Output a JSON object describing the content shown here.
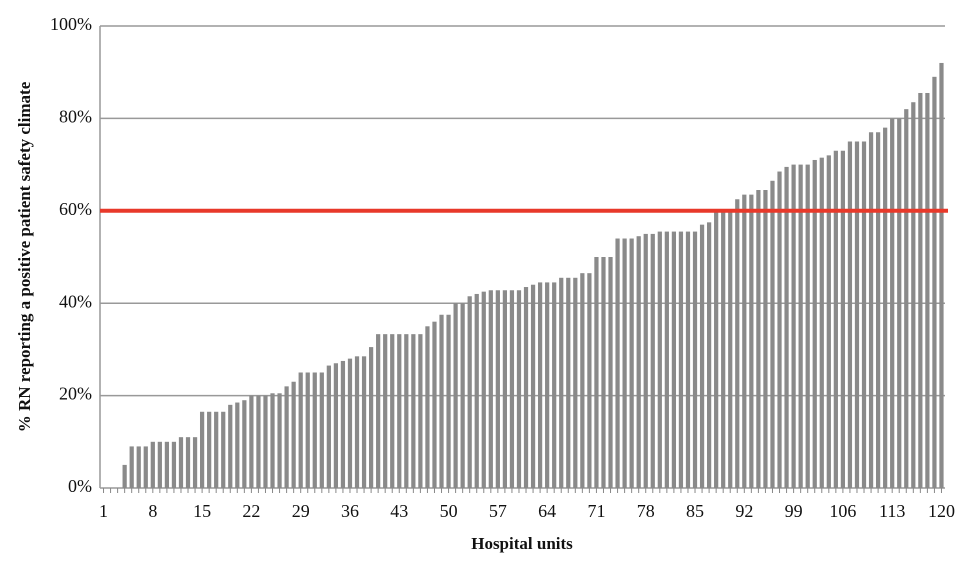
{
  "chart_data": {
    "type": "bar",
    "x_label": "Hospital units",
    "y_label": "% RN reporting a positive patient safety climate",
    "categories": [
      "1",
      null,
      null,
      null,
      null,
      null,
      null,
      "8",
      null,
      null,
      null,
      null,
      null,
      null,
      "15",
      null,
      null,
      null,
      null,
      null,
      null,
      "22",
      null,
      null,
      null,
      null,
      null,
      null,
      "29",
      null,
      null,
      null,
      null,
      null,
      null,
      "36",
      null,
      null,
      null,
      null,
      null,
      null,
      "43",
      null,
      null,
      null,
      null,
      null,
      null,
      "50",
      null,
      null,
      null,
      null,
      null,
      null,
      "57",
      null,
      null,
      null,
      null,
      null,
      null,
      "64",
      null,
      null,
      null,
      null,
      null,
      null,
      "71",
      null,
      null,
      null,
      null,
      null,
      null,
      "78",
      null,
      null,
      null,
      null,
      null,
      null,
      "85",
      null,
      null,
      null,
      null,
      null,
      null,
      "92",
      null,
      null,
      null,
      null,
      null,
      null,
      "99",
      null,
      null,
      null,
      null,
      null,
      null,
      "106",
      null,
      null,
      null,
      null,
      null,
      null,
      "113",
      null,
      null,
      null,
      null,
      null,
      null,
      "120"
    ],
    "values": [
      0,
      0,
      0,
      5,
      9,
      9,
      9,
      10,
      10,
      10,
      10,
      11,
      11,
      11,
      16.5,
      16.5,
      16.5,
      16.5,
      18,
      18.5,
      19,
      20,
      20,
      20,
      20.5,
      20.5,
      22,
      23,
      25,
      25,
      25,
      25,
      26.5,
      27,
      27.5,
      28,
      28.5,
      28.5,
      30.5,
      33.3,
      33.3,
      33.3,
      33.3,
      33.3,
      33.3,
      33.3,
      35,
      36,
      37.5,
      37.5,
      40,
      40,
      41.5,
      42,
      42.5,
      42.8,
      42.8,
      42.8,
      42.8,
      42.8,
      43.5,
      44,
      44.5,
      44.5,
      44.5,
      45.5,
      45.5,
      45.5,
      46.5,
      46.5,
      50,
      50,
      50,
      54,
      54,
      54,
      54.5,
      55,
      55,
      55.5,
      55.5,
      55.5,
      55.5,
      55.5,
      55.5,
      57,
      57.5,
      60,
      60,
      60,
      62.5,
      63.5,
      63.5,
      64.5,
      64.5,
      66.5,
      68.5,
      69.5,
      70,
      70,
      70,
      71,
      71.5,
      72,
      73,
      73,
      75,
      75,
      75,
      77,
      77,
      78,
      80,
      80,
      82,
      83.5,
      85.5,
      85.5,
      89,
      92
    ],
    "color": "#8a8a8a",
    "threshold": {
      "value": 60,
      "color": "#e8392a"
    },
    "ylim": [
      0,
      100
    ],
    "yticks": [
      {
        "value": 0,
        "label": "0%"
      },
      {
        "value": 20,
        "label": "20%"
      },
      {
        "value": 40,
        "label": "40%"
      },
      {
        "value": 60,
        "label": "60%"
      },
      {
        "value": 80,
        "label": "80%"
      },
      {
        "value": 100,
        "label": "100%"
      }
    ],
    "grid": true
  }
}
